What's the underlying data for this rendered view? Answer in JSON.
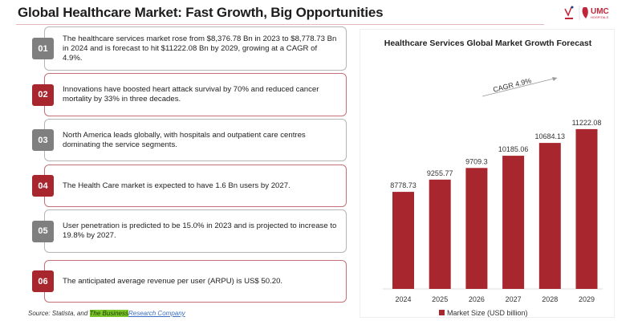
{
  "header": {
    "title": "Global Healthcare Market: Fast Growth, Big Opportunities",
    "logo_text": "UMC HOSPITALS"
  },
  "facts": [
    {
      "num": "01",
      "text": "The healthcare services market rose from $8,376.78 Bn in 2023 to $8,778.73 Bn in 2024 and is forecast to hit $11222.08  Bn by 2029, growing at a CAGR of 4.9%.",
      "accent": "#7f7f7f"
    },
    {
      "num": "02",
      "text": "Innovations have boosted heart attack survival by 70% and reduced cancer mortality by 33% in three decades.",
      "accent": "#a8272f"
    },
    {
      "num": "03",
      "text": "North America leads globally, with hospitals and outpatient care centres dominating the service segments.",
      "accent": "#7f7f7f"
    },
    {
      "num": "04",
      "text": "The Health Care market is expected to have 1.6 Bn users by 2027.",
      "accent": "#a8272f"
    },
    {
      "num": "05",
      "text": "User penetration is predicted to be 15.0% in 2023 and is projected to increase to 19.8% by 2027.",
      "accent": "#7f7f7f"
    },
    {
      "num": "06",
      "text": "The anticipated average revenue per user (ARPU) is US$ 50.20.",
      "accent": "#a8272f"
    }
  ],
  "source": {
    "prefix": "Source: Statista, and ",
    "highlight": "The Business",
    "link": "Research Company"
  },
  "chart_data": {
    "type": "bar",
    "title": "Healthcare Services Global Market Growth Forecast",
    "categories": [
      "2024",
      "2025",
      "2026",
      "2027",
      "2028",
      "2029"
    ],
    "series": [
      {
        "name": "Market Size (USD billion)",
        "values": [
          8778.73,
          9255.77,
          9709.3,
          10185.06,
          10684.13,
          11222.08
        ],
        "color": "#a8272f"
      }
    ],
    "data_labels": [
      "8778.73",
      "9255.77",
      "9709.3",
      "10185.06",
      "10684.13",
      "11222.08"
    ],
    "annotation": "CAGR 4.9%",
    "ylim": [
      5000,
      12000
    ],
    "grid": false,
    "legend": "bottom"
  }
}
